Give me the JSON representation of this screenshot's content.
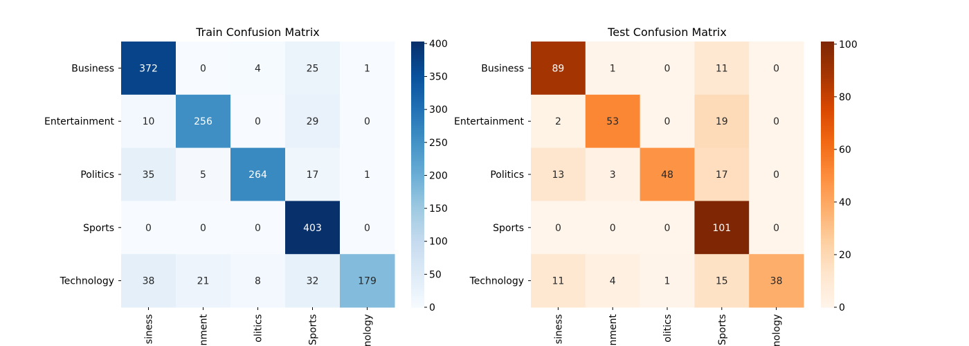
{
  "chart_data": [
    {
      "type": "heatmap",
      "title": "Train Confusion Matrix",
      "rows": [
        "Business",
        "Entertainment",
        "Politics",
        "Sports",
        "Technology"
      ],
      "columns": [
        "Business",
        "Entertainment",
        "Politics",
        "Sports",
        "Technology"
      ],
      "column_labels_visible": [
        "siness",
        "nment",
        "olitics",
        "Sports",
        "nology"
      ],
      "values": [
        [
          372,
          0,
          4,
          25,
          1
        ],
        [
          10,
          256,
          0,
          29,
          0
        ],
        [
          35,
          5,
          264,
          17,
          1
        ],
        [
          0,
          0,
          0,
          403,
          0
        ],
        [
          38,
          21,
          8,
          32,
          179
        ]
      ],
      "colormap": "Blues",
      "colorbar_ticks": [
        0,
        50,
        100,
        150,
        200,
        250,
        300,
        350,
        400
      ],
      "vmin": 0,
      "vmax": 403
    },
    {
      "type": "heatmap",
      "title": "Test Confusion Matrix",
      "rows": [
        "Business",
        "Entertainment",
        "Politics",
        "Sports",
        "Technology"
      ],
      "columns": [
        "Business",
        "Entertainment",
        "Politics",
        "Sports",
        "Technology"
      ],
      "column_labels_visible": [
        "siness",
        "nment",
        "olitics",
        "Sports",
        "nology"
      ],
      "values": [
        [
          89,
          1,
          0,
          11,
          0
        ],
        [
          2,
          53,
          0,
          19,
          0
        ],
        [
          13,
          3,
          48,
          17,
          0
        ],
        [
          0,
          0,
          0,
          101,
          0
        ],
        [
          11,
          4,
          1,
          15,
          38
        ]
      ],
      "colormap": "Oranges",
      "colorbar_ticks": [
        0,
        20,
        40,
        60,
        80,
        100
      ],
      "vmin": 0,
      "vmax": 101
    }
  ]
}
